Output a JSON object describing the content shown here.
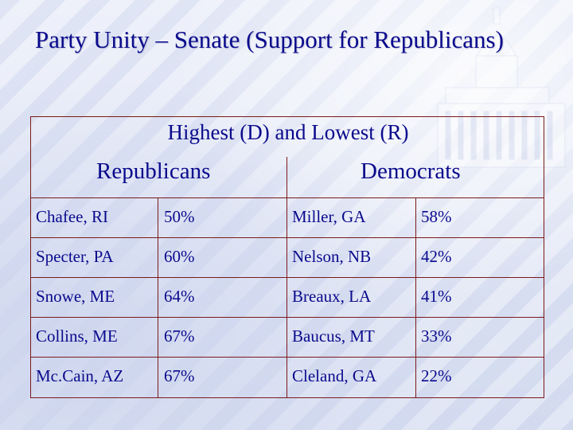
{
  "slide": {
    "title": "Party Unity – Senate (Support for Republicans)",
    "subtitle": "Highest (D) and Lowest (R)",
    "columns": {
      "republicans": "Republicans",
      "democrats": "Democrats"
    },
    "rows": [
      {
        "rep_name": "Chafee, RI",
        "rep_pct": "50%",
        "dem_name": "Miller, GA",
        "dem_pct": "58%"
      },
      {
        "rep_name": "Specter, PA",
        "rep_pct": "60%",
        "dem_name": "Nelson, NB",
        "dem_pct": "42%"
      },
      {
        "rep_name": "Snowe, ME",
        "rep_pct": "64%",
        "dem_name": "Breaux, LA",
        "dem_pct": "41%"
      },
      {
        "rep_name": "Collins, ME",
        "rep_pct": "67%",
        "dem_name": "Baucus, MT",
        "dem_pct": "33%"
      },
      {
        "rep_name": "Mc.Cain, AZ",
        "rep_pct": "67%",
        "dem_name": "Cleland, GA",
        "dem_pct": "22%"
      }
    ]
  },
  "colors": {
    "text": "#0a0a8c",
    "border": "#7a1a1a"
  }
}
